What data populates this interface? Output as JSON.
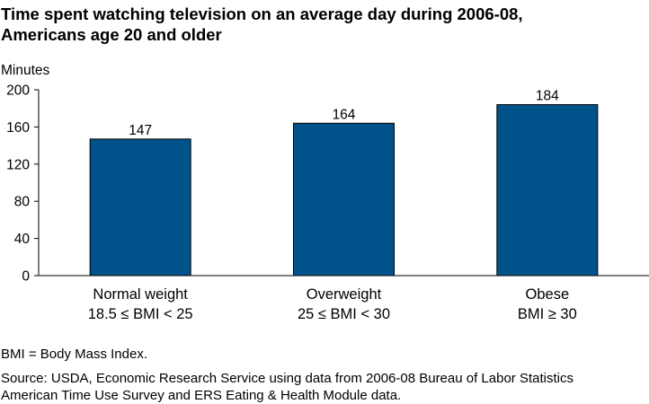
{
  "chart_data": {
    "type": "bar",
    "title_lines": [
      "Time spent watching television on an average day during 2006-08,",
      "Americans age 20 and older"
    ],
    "ylabel": "Minutes",
    "xlabel": "",
    "ylim": [
      0,
      200
    ],
    "yticks": [
      0,
      40,
      80,
      120,
      160,
      200
    ],
    "categories": [
      {
        "line1": "Normal weight",
        "line2": "18.5 ≤  BMI < 25"
      },
      {
        "line1": "Overweight",
        "line2": "25 ≤ BMI < 30"
      },
      {
        "line1": "Obese",
        "line2": "BMI ≥ 30"
      }
    ],
    "values": [
      147,
      164,
      184
    ],
    "data_labels": [
      "147",
      "164",
      "184"
    ],
    "bar_color": "#00538a",
    "grid": false
  },
  "notes": {
    "bmi_note": "BMI = Body Mass Index.",
    "source_line1": "Source: USDA, Economic Research Service using data from 2006-08 Bureau of Labor Statistics",
    "source_line2": "American Time Use Survey and ERS Eating & Health Module data."
  }
}
